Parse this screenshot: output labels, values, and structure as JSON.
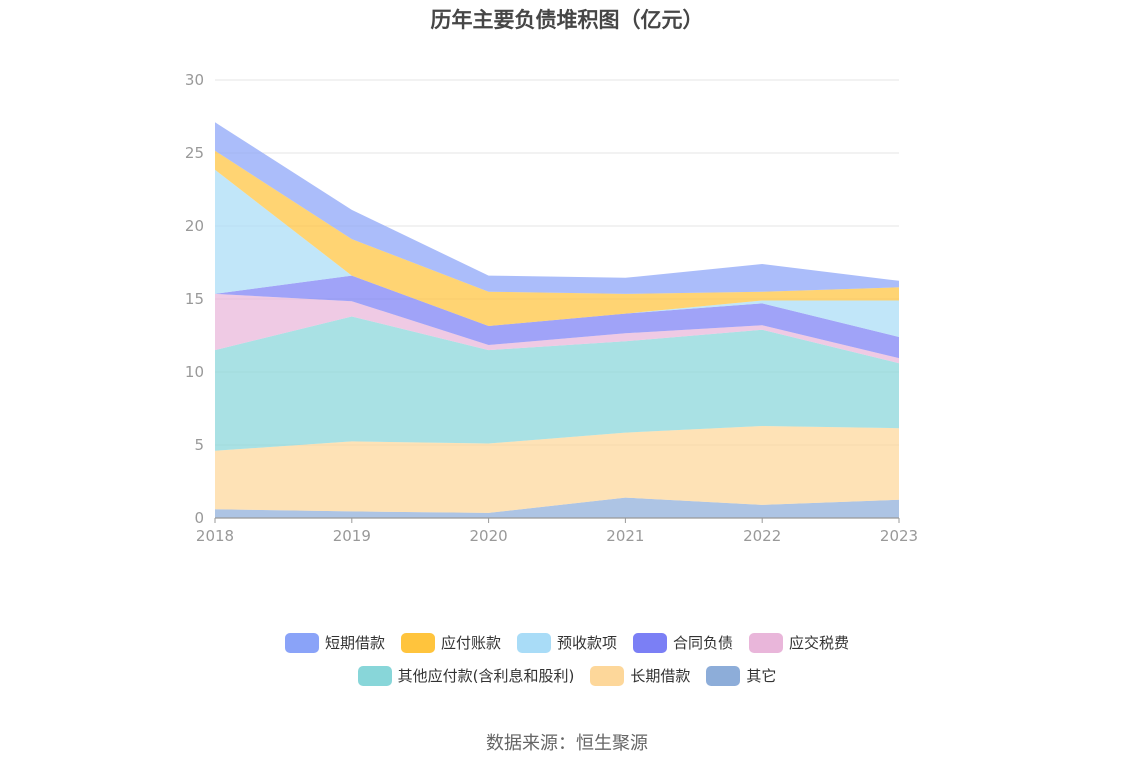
{
  "chart_data": {
    "type": "area",
    "title": "历年主要负债堆积图（亿元）",
    "x": [
      "2018",
      "2019",
      "2020",
      "2021",
      "2022",
      "2023"
    ],
    "ylim": [
      0,
      30
    ],
    "yticks": [
      0,
      5,
      10,
      15,
      20,
      25,
      30
    ],
    "grid": true,
    "legend_position": "bottom",
    "series": [
      {
        "name": "其它",
        "color": "#8dadd9",
        "values": [
          0.6,
          0.45,
          0.35,
          1.4,
          0.9,
          1.25
        ]
      },
      {
        "name": "长期借款",
        "color": "#fdd79a",
        "values": [
          4.0,
          4.8,
          4.75,
          4.45,
          5.4,
          4.9
        ]
      },
      {
        "name": "其他应付款(含利息和股利)",
        "color": "#88d6d9",
        "values": [
          6.9,
          8.55,
          6.4,
          6.25,
          6.6,
          4.45
        ]
      },
      {
        "name": "应交税费",
        "color": "#e9b6da",
        "values": [
          3.85,
          1.05,
          0.35,
          0.55,
          0.3,
          0.35
        ]
      },
      {
        "name": "合同负债",
        "color": "#7b7ff5",
        "values": [
          0.0,
          1.75,
          1.3,
          1.35,
          1.5,
          1.45
        ]
      },
      {
        "name": "预收款项",
        "color": "#a9dcf7",
        "values": [
          8.5,
          0.0,
          0.0,
          0.0,
          0.2,
          2.5
        ]
      },
      {
        "name": "应付账款",
        "color": "#ffc43d",
        "values": [
          1.3,
          2.5,
          2.35,
          1.35,
          0.6,
          0.9
        ]
      },
      {
        "name": "短期借款",
        "color": "#8aa3f8",
        "values": [
          1.95,
          2.0,
          1.1,
          1.1,
          1.9,
          0.45
        ]
      }
    ]
  },
  "legend": {
    "row1": [
      {
        "label": "短期借款",
        "color": "#8aa3f8"
      },
      {
        "label": "应付账款",
        "color": "#ffc43d"
      },
      {
        "label": "预收款项",
        "color": "#a9dcf7"
      },
      {
        "label": "合同负债",
        "color": "#7b7ff5"
      },
      {
        "label": "应交税费",
        "color": "#e9b6da"
      }
    ],
    "row2": [
      {
        "label": "其他应付款(含利息和股利)",
        "color": "#88d6d9"
      },
      {
        "label": "长期借款",
        "color": "#fdd79a"
      },
      {
        "label": "其它",
        "color": "#8dadd9"
      }
    ]
  },
  "source": "数据来源：恒生聚源"
}
